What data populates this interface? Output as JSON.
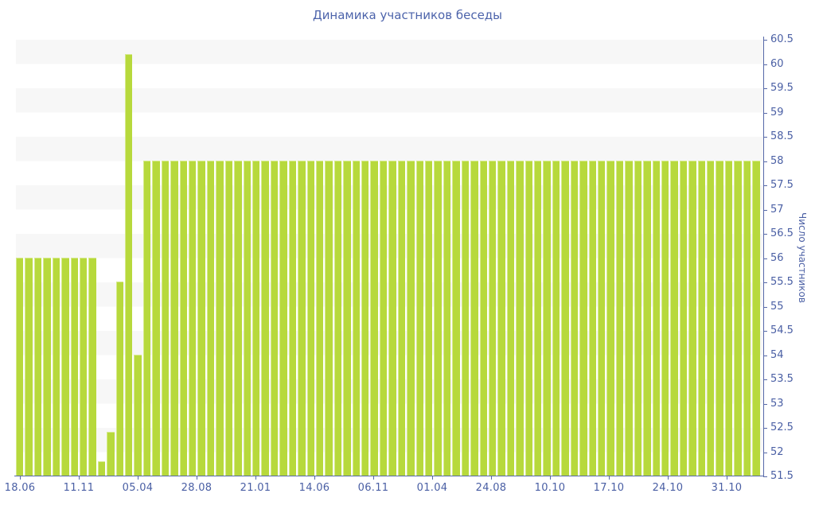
{
  "title": "Динамика участников беседы",
  "y_axis_title": "Число участников",
  "colors": {
    "bar": "#b7d93c",
    "bar_edge": "#d6ea8c",
    "band": "#f7f7f7",
    "axis": "#5668a8",
    "text": "#4a5fa4",
    "title": "#4d64ab"
  },
  "chart_data": {
    "type": "bar",
    "title": "Динамика участников беседы",
    "xlabel": "",
    "ylabel": "Число участников",
    "ylim": [
      51.5,
      60.5
    ],
    "ytick_step": 0.5,
    "grid": "alternating horizontal bands, gray over white, every 0.5 units",
    "legend": "none",
    "y_axis_position": "right",
    "x_tick_labels": [
      "18.06",
      "11.11",
      "05.04",
      "28.08",
      "21.01",
      "14.06",
      "06.11",
      "01.04",
      "24.08",
      "10.10",
      "17.10",
      "24.10",
      "31.10"
    ],
    "values": [
      56,
      56,
      56,
      56,
      56,
      56,
      56,
      56,
      56,
      51.8,
      52.4,
      55.5,
      60.2,
      54,
      58,
      58,
      58,
      58,
      58,
      58,
      58,
      58,
      58,
      58,
      58,
      58,
      58,
      58,
      58,
      58,
      58,
      58,
      58,
      58,
      58,
      58,
      58,
      58,
      58,
      58,
      58,
      58,
      58,
      58,
      58,
      58,
      58,
      58,
      58,
      58,
      58,
      58,
      58,
      58,
      58,
      58,
      58,
      58,
      58,
      58,
      58,
      58,
      58,
      58,
      58,
      58,
      58,
      58,
      58,
      58,
      58,
      58,
      58,
      58,
      58,
      58,
      58,
      58,
      58,
      58,
      58,
      58
    ]
  }
}
